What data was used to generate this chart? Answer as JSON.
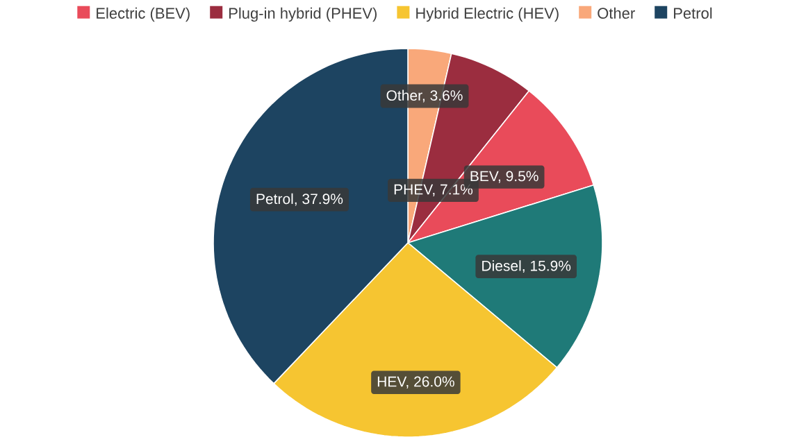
{
  "chart_data": {
    "type": "pie",
    "categories": [
      "Other",
      "Plug-in hybrid (PHEV)",
      "Electric (BEV)",
      null,
      "Hybrid Electric (HEV)",
      "Petrol"
    ],
    "values": [
      3.6,
      7.1,
      9.5,
      15.9,
      26.0,
      37.9
    ],
    "colors": [
      "#f9a87a",
      "#9b2d3f",
      "#e94b5a",
      "#1f7a78",
      "#f6c531",
      "#1d4461"
    ],
    "value_labels": [
      "Other, 3.6%",
      "PHEV, 7.1%",
      "BEV, 9.5%",
      "Diesel, 15.9%",
      "HEV, 26.0%",
      "Petrol, 37.9%"
    ],
    "legend": "top"
  }
}
